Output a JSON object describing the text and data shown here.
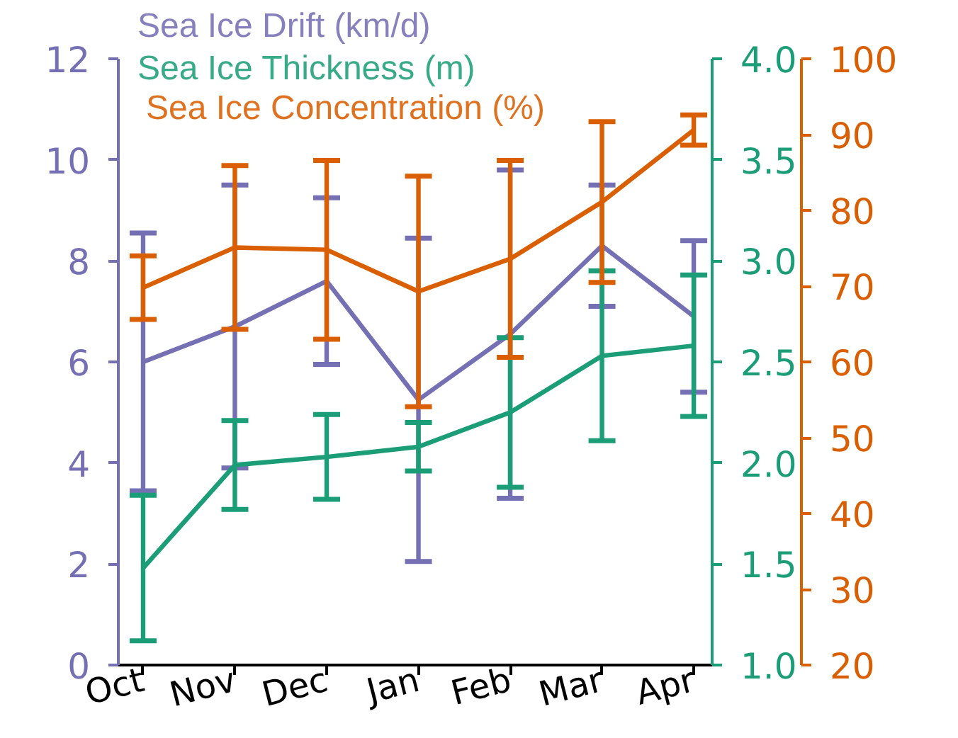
{
  "chart_data": {
    "type": "line",
    "categories": [
      "Oct",
      "Nov",
      "Dec",
      "Jan",
      "Feb",
      "Mar",
      "Apr"
    ],
    "series": [
      {
        "name": "Sea Ice Drift (km/d)",
        "color": "#7570b3",
        "values": [
          6.0,
          6.7,
          7.6,
          5.25,
          6.55,
          8.3,
          6.9
        ],
        "errors": [
          2.55,
          2.8,
          1.65,
          3.2,
          3.25,
          1.2,
          1.5
        ]
      },
      {
        "name": "Sea Ice Thickness (m)",
        "color": "#1b9e77",
        "axis": "y2",
        "values": [
          1.48,
          1.99,
          2.03,
          2.08,
          2.25,
          2.53,
          2.58
        ],
        "errors": [
          0.36,
          0.22,
          0.21,
          0.12,
          0.37,
          0.42,
          0.35
        ]
      },
      {
        "name": "Sea Ice Concentration (%)",
        "color": "#d95f02",
        "axis": "y3",
        "values": [
          69.8,
          75.1,
          74.8,
          69.3,
          73.6,
          81.1,
          90.6
        ],
        "errors": [
          4.2,
          10.8,
          11.8,
          15.2,
          13.0,
          10.6,
          2.0
        ]
      }
    ],
    "ylim": [
      0,
      12
    ],
    "yticks": [
      0,
      2,
      4,
      6,
      8,
      10,
      12
    ],
    "y2lim": [
      1.0,
      4.0
    ],
    "y2ticks": [
      {
        "value": 1.0,
        "label": "1.0"
      },
      1.5,
      {
        "value": 2.0,
        "label": "2.0"
      },
      2.5,
      {
        "value": 3.0,
        "label": "3.0"
      },
      3.5,
      {
        "value": 4.0,
        "label": "4.0"
      }
    ],
    "y3lim": [
      20,
      100
    ],
    "y3ticks": [
      20,
      30,
      40,
      50,
      60,
      70,
      80,
      90,
      100
    ],
    "legend": "top left",
    "grid": false,
    "marker": "none"
  }
}
